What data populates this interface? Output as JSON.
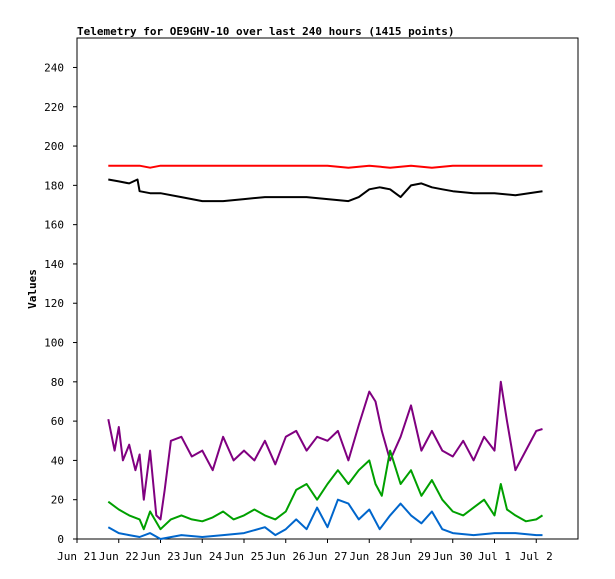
{
  "chart_data": {
    "type": "line",
    "title": "Telemetry for OE9GHV-10 over last 240 hours (1415 points)",
    "ylabel": "Values",
    "xlabel": "",
    "ylim": [
      0,
      255
    ],
    "xlim": [
      0,
      12
    ],
    "yticks": [
      0,
      20,
      40,
      60,
      80,
      100,
      120,
      140,
      160,
      180,
      200,
      220,
      240
    ],
    "xticks": [
      {
        "x": 0,
        "label": "Jun 21"
      },
      {
        "x": 1,
        "label": "Jun 22"
      },
      {
        "x": 2,
        "label": "Jun 23"
      },
      {
        "x": 3,
        "label": "Jun 24"
      },
      {
        "x": 4,
        "label": "Jun 25"
      },
      {
        "x": 5,
        "label": "Jun 26"
      },
      {
        "x": 6,
        "label": "Jun 27"
      },
      {
        "x": 7,
        "label": "Jun 28"
      },
      {
        "x": 8,
        "label": "Jun 29"
      },
      {
        "x": 9,
        "label": "Jun 30"
      },
      {
        "x": 10,
        "label": "Jul 1"
      },
      {
        "x": 11,
        "label": "Jul 2"
      }
    ],
    "grid": false,
    "series": [
      {
        "color": "#ff0000",
        "x": [
          0.75,
          1.0,
          1.5,
          1.75,
          2.0,
          3.0,
          4.0,
          5.0,
          6.0,
          6.5,
          7.0,
          7.5,
          8.0,
          8.5,
          9.0,
          10.0,
          10.5,
          11.15
        ],
        "y": [
          190,
          190,
          190,
          189,
          190,
          190,
          190,
          190,
          190,
          189,
          190,
          189,
          190,
          189,
          190,
          190,
          190,
          190
        ]
      },
      {
        "color": "#000000",
        "x": [
          0.75,
          1.0,
          1.25,
          1.45,
          1.5,
          1.75,
          2.0,
          2.5,
          3.0,
          3.5,
          4.0,
          4.5,
          5.0,
          5.5,
          6.0,
          6.5,
          6.75,
          7.0,
          7.25,
          7.5,
          7.75,
          8.0,
          8.25,
          8.5,
          8.75,
          9.0,
          9.5,
          10.0,
          10.5,
          11.15
        ],
        "y": [
          183,
          182,
          181,
          183,
          177,
          176,
          176,
          174,
          172,
          172,
          173,
          174,
          174,
          174,
          173,
          172,
          174,
          178,
          179,
          178,
          174,
          180,
          181,
          179,
          178,
          177,
          176,
          176,
          175,
          177
        ]
      },
      {
        "color": "#800080",
        "x": [
          0.75,
          0.9,
          1.0,
          1.1,
          1.25,
          1.4,
          1.5,
          1.6,
          1.75,
          1.9,
          2.0,
          2.1,
          2.25,
          2.5,
          2.75,
          3.0,
          3.25,
          3.5,
          3.75,
          4.0,
          4.25,
          4.5,
          4.75,
          5.0,
          5.25,
          5.5,
          5.75,
          6.0,
          6.25,
          6.5,
          6.75,
          7.0,
          7.15,
          7.3,
          7.5,
          7.75,
          8.0,
          8.25,
          8.5,
          8.75,
          9.0,
          9.25,
          9.5,
          9.75,
          10.0,
          10.15,
          10.3,
          10.5,
          10.75,
          11.0,
          11.15
        ],
        "y": [
          61,
          45,
          57,
          40,
          48,
          35,
          43,
          20,
          45,
          12,
          10,
          25,
          50,
          52,
          42,
          45,
          35,
          52,
          40,
          45,
          40,
          50,
          38,
          52,
          55,
          45,
          52,
          50,
          55,
          40,
          58,
          75,
          70,
          55,
          40,
          52,
          68,
          45,
          55,
          45,
          42,
          50,
          40,
          52,
          45,
          80,
          60,
          35,
          45,
          55,
          56
        ]
      },
      {
        "color": "#00a000",
        "x": [
          0.75,
          1.0,
          1.25,
          1.5,
          1.6,
          1.75,
          2.0,
          2.25,
          2.5,
          2.75,
          3.0,
          3.25,
          3.5,
          3.75,
          4.0,
          4.25,
          4.5,
          4.75,
          5.0,
          5.25,
          5.5,
          5.75,
          6.0,
          6.25,
          6.5,
          6.75,
          7.0,
          7.15,
          7.3,
          7.5,
          7.75,
          8.0,
          8.25,
          8.5,
          8.75,
          9.0,
          9.25,
          9.5,
          9.75,
          10.0,
          10.15,
          10.3,
          10.5,
          10.75,
          11.0,
          11.15
        ],
        "y": [
          19,
          15,
          12,
          10,
          5,
          14,
          5,
          10,
          12,
          10,
          9,
          11,
          14,
          10,
          12,
          15,
          12,
          10,
          14,
          25,
          28,
          20,
          28,
          35,
          28,
          35,
          40,
          28,
          22,
          45,
          28,
          35,
          22,
          30,
          20,
          14,
          12,
          16,
          20,
          12,
          28,
          15,
          12,
          9,
          10,
          12
        ]
      },
      {
        "color": "#0066cc",
        "x": [
          0.75,
          1.0,
          1.25,
          1.5,
          1.75,
          2.0,
          2.5,
          3.0,
          3.5,
          4.0,
          4.5,
          4.75,
          5.0,
          5.25,
          5.5,
          5.75,
          6.0,
          6.25,
          6.5,
          6.75,
          7.0,
          7.25,
          7.5,
          7.75,
          8.0,
          8.25,
          8.5,
          8.75,
          9.0,
          9.5,
          10.0,
          10.5,
          11.0,
          11.15
        ],
        "y": [
          6,
          3,
          2,
          1,
          3,
          0,
          2,
          1,
          2,
          3,
          6,
          2,
          5,
          10,
          5,
          16,
          6,
          20,
          18,
          10,
          15,
          5,
          12,
          18,
          12,
          8,
          14,
          5,
          3,
          2,
          3,
          3,
          2,
          2
        ]
      }
    ]
  }
}
